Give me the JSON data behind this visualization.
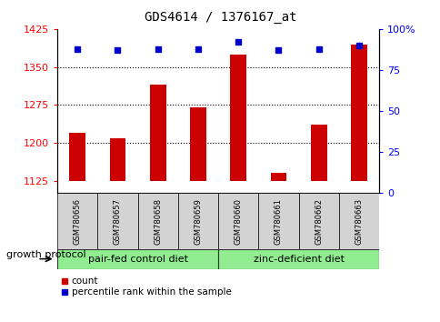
{
  "title": "GDS4614 / 1376167_at",
  "samples": [
    "GSM780656",
    "GSM780657",
    "GSM780658",
    "GSM780659",
    "GSM780660",
    "GSM780661",
    "GSM780662",
    "GSM780663"
  ],
  "counts": [
    1220,
    1208,
    1315,
    1270,
    1375,
    1140,
    1235,
    1395
  ],
  "percentiles": [
    88,
    87,
    88,
    88,
    92,
    87,
    88,
    90
  ],
  "bar_baseline": 1125,
  "ylim_left": [
    1100,
    1425
  ],
  "ylim_right": [
    0,
    100
  ],
  "yticks_left": [
    1125,
    1200,
    1275,
    1350,
    1425
  ],
  "yticks_right": [
    0,
    25,
    50,
    75,
    100
  ],
  "ytick_right_labels": [
    "0",
    "25",
    "50",
    "75",
    "100%"
  ],
  "hgrid_values": [
    1200,
    1275,
    1350
  ],
  "bar_color": "#cc0000",
  "dot_color": "#0000cc",
  "bar_width": 0.4,
  "group1_label": "pair-fed control diet",
  "group2_label": "zinc-deficient diet",
  "group1_indices": [
    0,
    1,
    2,
    3
  ],
  "group2_indices": [
    4,
    5,
    6,
    7
  ],
  "legend_count_label": "count",
  "legend_pct_label": "percentile rank within the sample",
  "protocol_label": "growth protocol",
  "group_bg_color": "#90ee90",
  "sample_box_color": "#d3d3d3",
  "title_fontsize": 10,
  "tick_fontsize": 8,
  "sample_fontsize": 6,
  "group_fontsize": 8,
  "legend_fontsize": 7.5,
  "protocol_fontsize": 8
}
